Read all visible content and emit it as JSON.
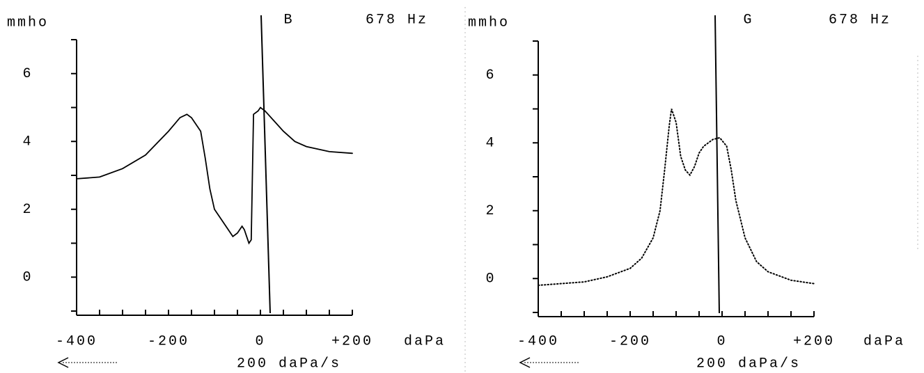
{
  "chart_data": [
    {
      "type": "line",
      "title": "B",
      "subtitle": "678 Hz",
      "y_label": "mmho",
      "x_label": "daPa",
      "rate_label": "200 daPa/s",
      "line_style": "solid",
      "color": "#000000",
      "x": [
        -400,
        -350,
        -300,
        -250,
        -200,
        -175,
        -160,
        -150,
        -130,
        -120,
        -110,
        -100,
        -80,
        -60,
        -50,
        -40,
        -35,
        -30,
        -25,
        -20,
        -15,
        -5,
        0,
        10,
        30,
        50,
        75,
        100,
        150,
        200
      ],
      "values": [
        2.9,
        2.95,
        3.2,
        3.6,
        4.3,
        4.7,
        4.8,
        4.7,
        4.3,
        3.5,
        2.6,
        2.0,
        1.6,
        1.2,
        1.3,
        1.5,
        1.4,
        1.2,
        1.0,
        1.1,
        4.8,
        4.9,
        5.0,
        4.9,
        4.6,
        4.3,
        4.0,
        3.85,
        3.7,
        3.65
      ],
      "xlim": [
        -400,
        200
      ],
      "ylim": [
        -1,
        7
      ],
      "xticks": [
        -400,
        -200,
        0,
        {
          "value": 200,
          "label": "+200"
        }
      ],
      "yticks": [
        0,
        2,
        4,
        6
      ],
      "minor_xticks": [
        -350,
        -300,
        -250,
        -150,
        -100,
        -50,
        50,
        100,
        150
      ],
      "minor_yticks": [
        -1,
        1,
        3,
        5,
        7
      ]
    },
    {
      "type": "line",
      "title": "G",
      "subtitle": "678 Hz",
      "y_label": "mmho",
      "x_label": "daPa",
      "rate_label": "200 daPa/s",
      "line_style": "dotted",
      "color": "#000000",
      "x": [
        -400,
        -300,
        -250,
        -200,
        -175,
        -150,
        -135,
        -125,
        -115,
        -110,
        -100,
        -90,
        -80,
        -70,
        -60,
        -50,
        -40,
        -20,
        -5,
        10,
        20,
        30,
        50,
        75,
        100,
        150,
        200
      ],
      "values": [
        -0.2,
        -0.1,
        0.05,
        0.3,
        0.6,
        1.2,
        2.0,
        3.2,
        4.5,
        5.0,
        4.6,
        3.6,
        3.2,
        3.05,
        3.3,
        3.7,
        3.9,
        4.1,
        4.15,
        3.9,
        3.2,
        2.3,
        1.2,
        0.5,
        0.2,
        -0.05,
        -0.15
      ],
      "xlim": [
        -400,
        200
      ],
      "ylim": [
        -1,
        7
      ],
      "xticks": [
        -400,
        -200,
        0,
        {
          "value": 200,
          "label": "+200"
        }
      ],
      "yticks": [
        0,
        2,
        4,
        6
      ],
      "minor_xticks": [
        -350,
        -300,
        -250,
        -150,
        -100,
        -50,
        50,
        100,
        150
      ],
      "minor_yticks": [
        -1,
        1,
        3,
        5,
        7
      ]
    }
  ]
}
